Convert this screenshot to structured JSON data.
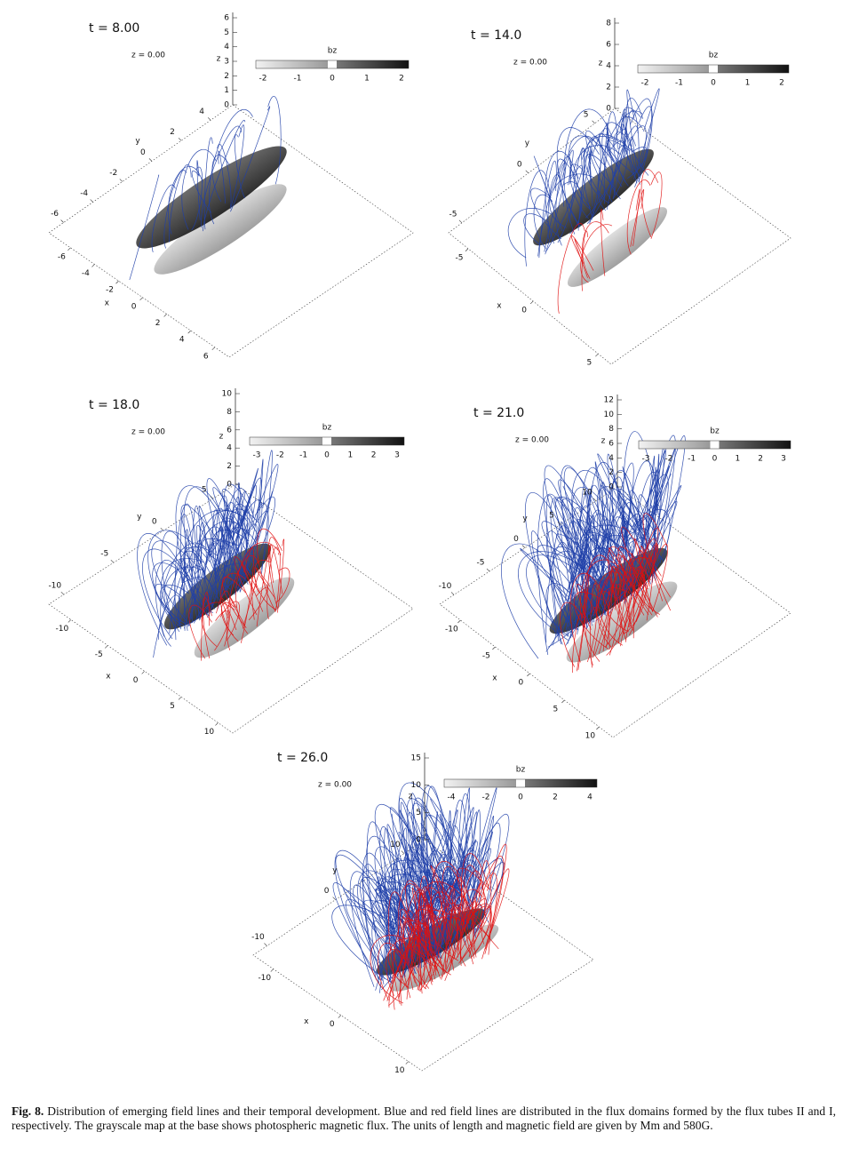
{
  "panels": [
    {
      "time_label": "t = 8.00",
      "z_label": "z = 0.00",
      "colorbar": {
        "title": "bz",
        "ticks": [
          "-2",
          "-1",
          "0",
          "1",
          "2"
        ]
      },
      "z_axis": {
        "label": "z",
        "ticks": [
          "0",
          "1",
          "2",
          "3",
          "4",
          "5",
          "6"
        ]
      },
      "y_axis": {
        "label": "y",
        "ticks": [
          "4",
          "2",
          "0",
          "-2",
          "-4",
          "-6"
        ]
      },
      "x_axis": {
        "label": "x",
        "ticks": [
          "-6",
          "-4",
          "-2",
          "0",
          "2",
          "4",
          "6"
        ]
      }
    },
    {
      "time_label": "t = 14.0",
      "z_label": "z = 0.00",
      "colorbar": {
        "title": "bz",
        "ticks": [
          "-2",
          "-1",
          "0",
          "1",
          "2"
        ]
      },
      "z_axis": {
        "label": "z",
        "ticks": [
          "0",
          "2",
          "4",
          "6",
          "8"
        ]
      },
      "y_axis": {
        "label": "y",
        "ticks": [
          "5",
          "0",
          "-5"
        ]
      },
      "x_axis": {
        "label": "x",
        "ticks": [
          "-5",
          "0",
          "5"
        ]
      }
    },
    {
      "time_label": "t = 18.0",
      "z_label": "z = 0.00",
      "colorbar": {
        "title": "bz",
        "ticks": [
          "-3",
          "-2",
          "-1",
          "0",
          "1",
          "2",
          "3"
        ]
      },
      "z_axis": {
        "label": "z",
        "ticks": [
          "0",
          "2",
          "4",
          "6",
          "8",
          "10"
        ]
      },
      "y_axis": {
        "label": "y",
        "ticks": [
          "5",
          "0",
          "-5",
          "-10"
        ]
      },
      "x_axis": {
        "label": "x",
        "ticks": [
          "-10",
          "-5",
          "0",
          "5",
          "10"
        ]
      }
    },
    {
      "time_label": "t = 21.0",
      "z_label": "z = 0.00",
      "colorbar": {
        "title": "bz",
        "ticks": [
          "-3",
          "-2",
          "-1",
          "0",
          "1",
          "2",
          "3"
        ]
      },
      "z_axis": {
        "label": "z",
        "ticks": [
          "0",
          "2",
          "4",
          "6",
          "8",
          "10",
          "12"
        ]
      },
      "y_axis": {
        "label": "y",
        "ticks": [
          "10",
          "5",
          "0",
          "-5",
          "-10"
        ]
      },
      "x_axis": {
        "label": "x",
        "ticks": [
          "-10",
          "-5",
          "0",
          "5",
          "10"
        ]
      }
    },
    {
      "time_label": "t = 26.0",
      "z_label": "z = 0.00",
      "colorbar": {
        "title": "bz",
        "ticks": [
          "-4",
          "-2",
          "0",
          "2",
          "4"
        ]
      },
      "z_axis": {
        "label": "z",
        "ticks": [
          "0",
          "5",
          "10",
          "15"
        ]
      },
      "y_axis": {
        "label": "y",
        "ticks": [
          "10",
          "0",
          "-10"
        ]
      },
      "x_axis": {
        "label": "x",
        "ticks": [
          "-10",
          "0",
          "10"
        ]
      }
    }
  ],
  "caption": {
    "label": "Fig. 8.",
    "text": "Distribution of emerging field lines and their temporal development. Blue and red field lines are distributed in the flux domains formed by the flux tubes II and I, respectively. The grayscale map at the base shows photospheric magnetic flux. The units of length and magnetic field are given by Mm and 580G."
  }
}
